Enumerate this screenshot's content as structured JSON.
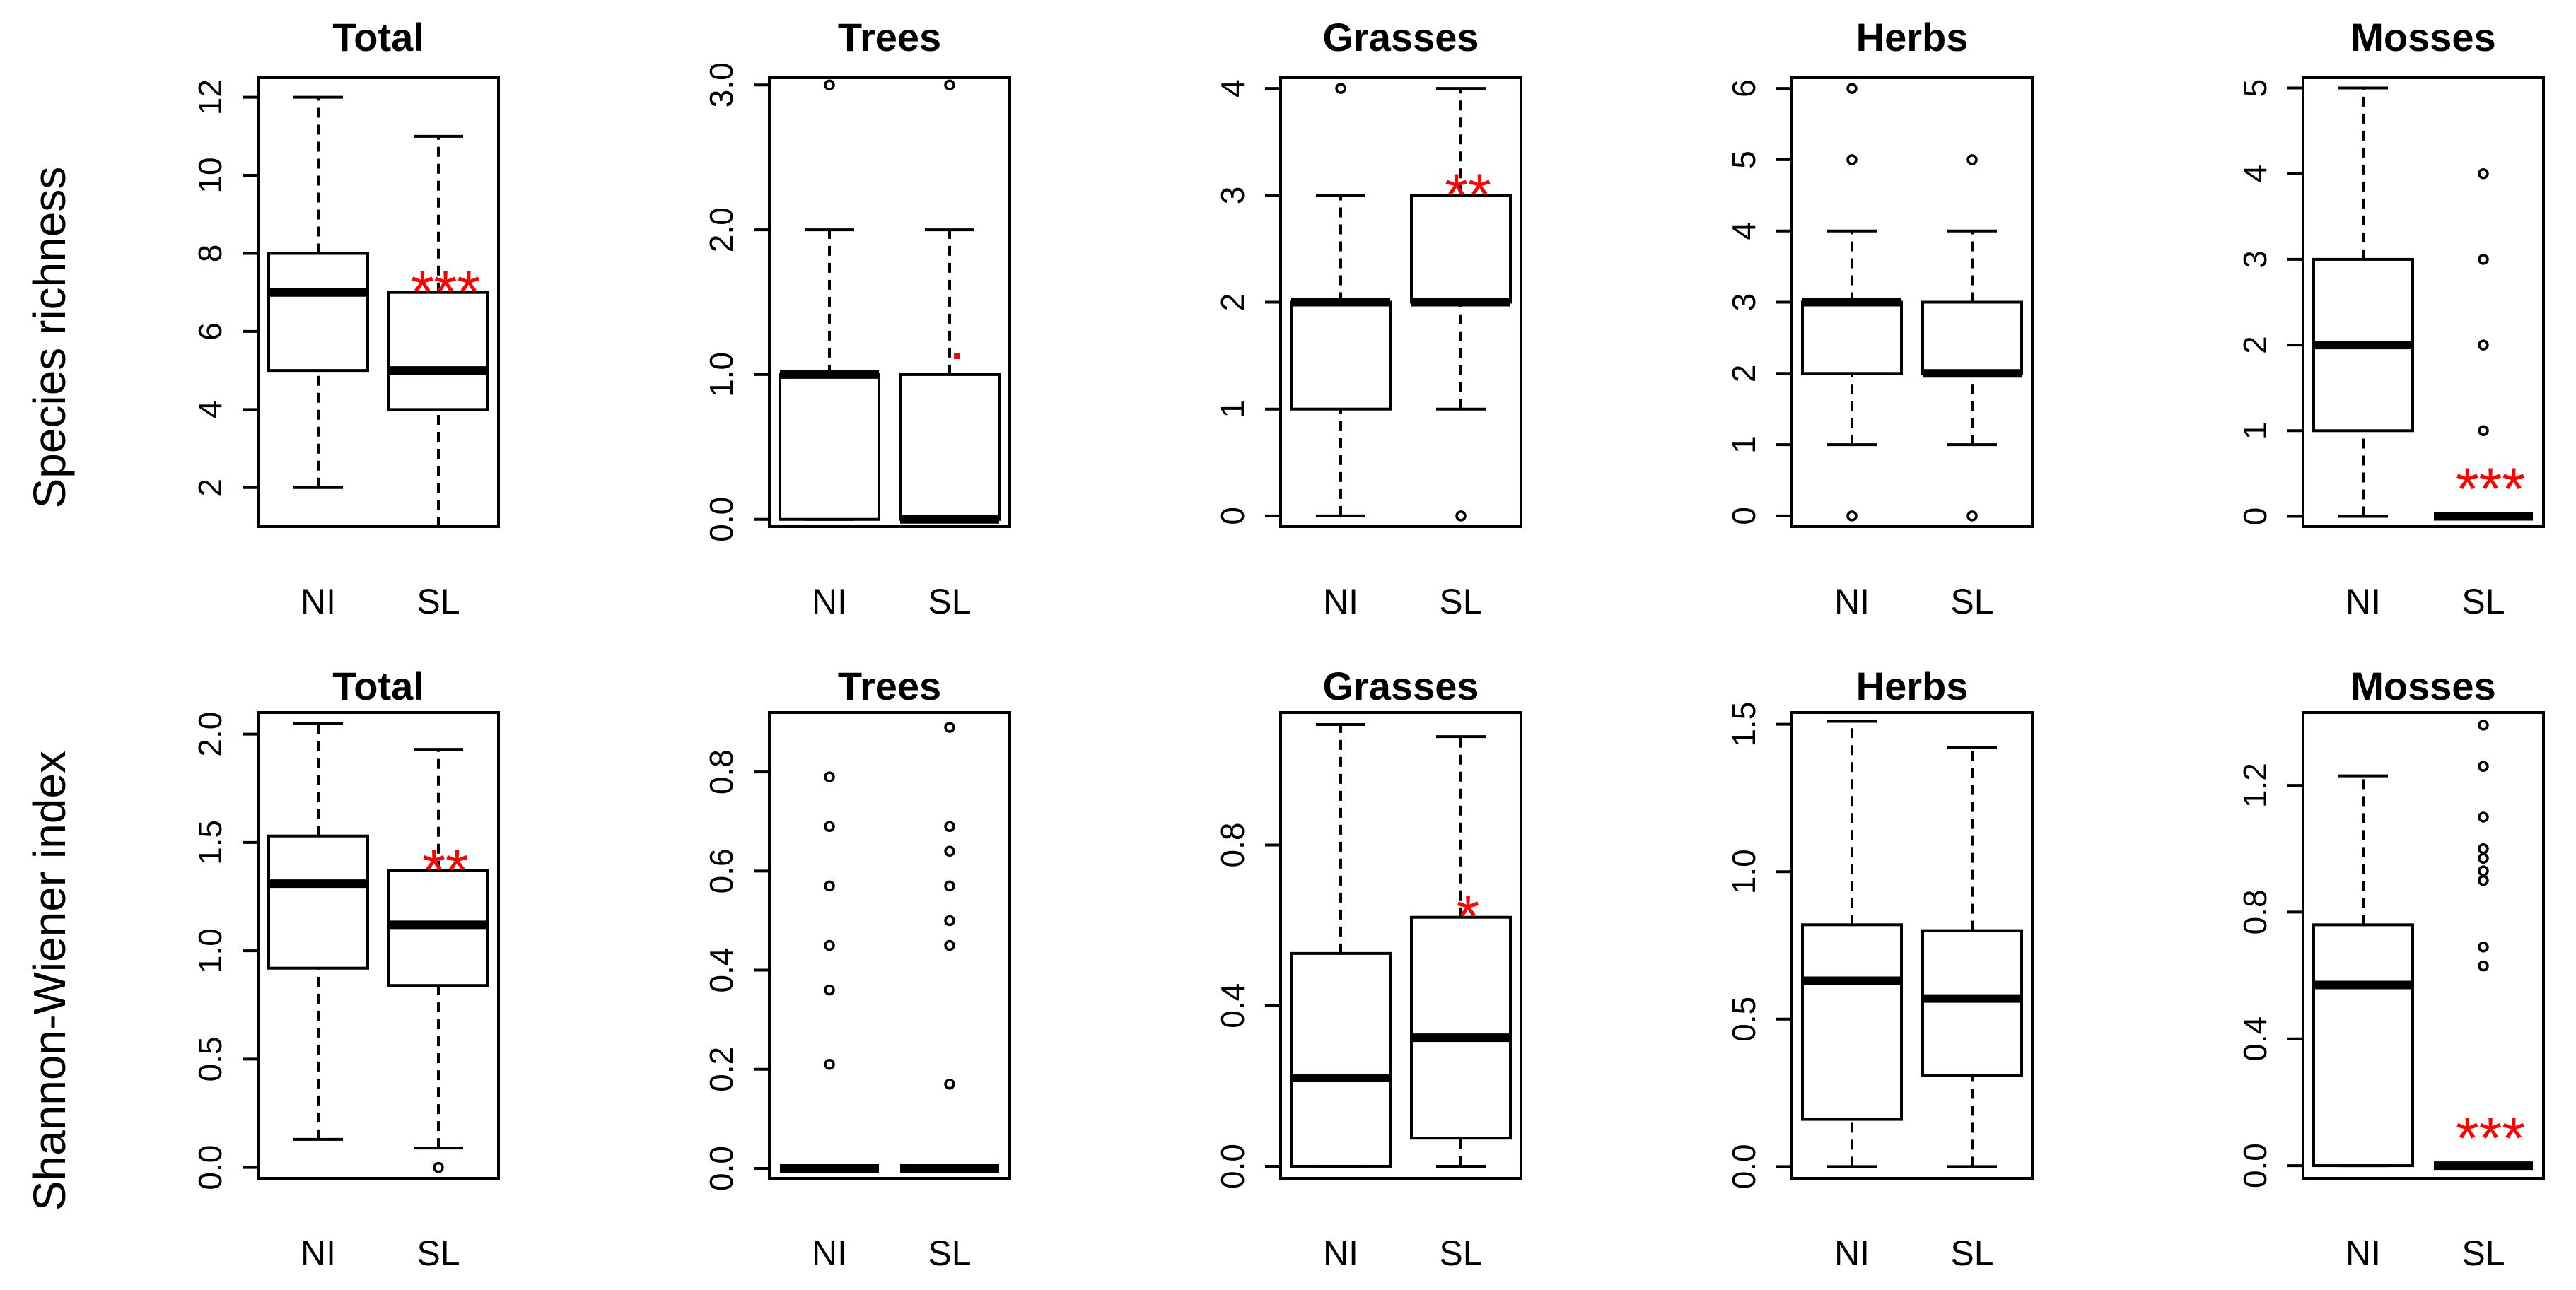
{
  "chart_data": {
    "type": "boxplot",
    "colors": {
      "significance": "#ff0000",
      "ink": "#000000"
    },
    "row_labels": [
      "Species richness",
      "Shannon-Wiener index"
    ],
    "panels": [
      {
        "row": 0,
        "col": 0,
        "title": "Total",
        "ylim": [
          1,
          12.5
        ],
        "ticks": [
          2,
          4,
          6,
          8,
          10,
          12
        ],
        "tick_labels": [
          "2",
          "4",
          "6",
          "8",
          "10",
          "12"
        ],
        "categories": [
          "NI",
          "SL"
        ],
        "boxes": [
          {
            "lw": 2,
            "q1": 5,
            "median": 7,
            "q3": 8,
            "uw": 12,
            "outliers": []
          },
          {
            "lw": 1,
            "q1": 4,
            "median": 5,
            "q3": 7,
            "uw": 11,
            "outliers": []
          }
        ],
        "significance": "***"
      },
      {
        "row": 0,
        "col": 1,
        "title": "Trees",
        "ylim": [
          -0.05,
          3.05
        ],
        "ticks": [
          0,
          1,
          2,
          3
        ],
        "tick_labels": [
          "0.0",
          "1.0",
          "2.0",
          "3.0"
        ],
        "categories": [
          "NI",
          "SL"
        ],
        "boxes": [
          {
            "lw": 0,
            "q1": 0,
            "median": 1,
            "q3": 1,
            "uw": 2,
            "outliers": [
              3
            ]
          },
          {
            "lw": 0,
            "q1": 0,
            "median": 0,
            "q3": 1,
            "uw": 2,
            "outliers": [
              3
            ]
          }
        ],
        "significance": "."
      },
      {
        "row": 0,
        "col": 2,
        "title": "Grasses",
        "ylim": [
          -0.1,
          4.1
        ],
        "ticks": [
          0,
          1,
          2,
          3,
          4
        ],
        "tick_labels": [
          "0",
          "1",
          "2",
          "3",
          "4"
        ],
        "categories": [
          "NI",
          "SL"
        ],
        "boxes": [
          {
            "lw": 0,
            "q1": 1,
            "median": 2,
            "q3": 2,
            "uw": 3,
            "outliers": [
              4
            ]
          },
          {
            "lw": 1,
            "q1": 2,
            "median": 2,
            "q3": 3,
            "uw": 4,
            "outliers": [
              0
            ]
          }
        ],
        "significance": "**"
      },
      {
        "row": 0,
        "col": 3,
        "title": "Herbs",
        "ylim": [
          -0.15,
          6.15
        ],
        "ticks": [
          0,
          1,
          2,
          3,
          4,
          5,
          6
        ],
        "tick_labels": [
          "0",
          "1",
          "2",
          "3",
          "4",
          "5",
          "6"
        ],
        "categories": [
          "NI",
          "SL"
        ],
        "boxes": [
          {
            "lw": 1,
            "q1": 2,
            "median": 3,
            "q3": 3,
            "uw": 4,
            "outliers": [
              0,
              5,
              6
            ]
          },
          {
            "lw": 1,
            "q1": 2,
            "median": 2,
            "q3": 3,
            "uw": 4,
            "outliers": [
              0,
              5
            ]
          }
        ],
        "significance": ""
      },
      {
        "row": 0,
        "col": 4,
        "title": "Mosses",
        "ylim": [
          -0.12,
          5.12
        ],
        "ticks": [
          0,
          1,
          2,
          3,
          4,
          5
        ],
        "tick_labels": [
          "0",
          "1",
          "2",
          "3",
          "4",
          "5"
        ],
        "categories": [
          "NI",
          "SL"
        ],
        "boxes": [
          {
            "lw": 0,
            "q1": 1,
            "median": 2,
            "q3": 3,
            "uw": 5,
            "outliers": []
          },
          {
            "lw": 0,
            "q1": 0,
            "median": 0,
            "q3": 0,
            "uw": 0,
            "outliers": [
              1,
              2,
              3,
              4
            ]
          }
        ],
        "significance": "***"
      },
      {
        "row": 1,
        "col": 0,
        "title": "Total",
        "ylim": [
          -0.05,
          2.1
        ],
        "ticks": [
          0,
          0.5,
          1,
          1.5,
          2
        ],
        "tick_labels": [
          "0.0",
          "0.5",
          "1.0",
          "1.5",
          "2.0"
        ],
        "categories": [
          "NI",
          "SL"
        ],
        "boxes": [
          {
            "lw": 0.13,
            "q1": 0.92,
            "median": 1.31,
            "q3": 1.53,
            "uw": 2.05,
            "outliers": []
          },
          {
            "lw": 0.09,
            "q1": 0.84,
            "median": 1.12,
            "q3": 1.37,
            "uw": 1.93,
            "outliers": [
              0
            ]
          }
        ],
        "significance": "**"
      },
      {
        "row": 1,
        "col": 1,
        "title": "Trees",
        "ylim": [
          -0.02,
          0.92
        ],
        "ticks": [
          0,
          0.2,
          0.4,
          0.6,
          0.8
        ],
        "tick_labels": [
          "0.0",
          "0.2",
          "0.4",
          "0.6",
          "0.8"
        ],
        "categories": [
          "NI",
          "SL"
        ],
        "boxes": [
          {
            "lw": 0,
            "q1": 0,
            "median": 0,
            "q3": 0,
            "uw": 0,
            "outliers": [
              0.21,
              0.36,
              0.45,
              0.57,
              0.69,
              0.79
            ]
          },
          {
            "lw": 0,
            "q1": 0,
            "median": 0,
            "q3": 0,
            "uw": 0,
            "outliers": [
              0.17,
              0.45,
              0.5,
              0.57,
              0.64,
              0.69,
              0.89
            ]
          }
        ],
        "significance": ""
      },
      {
        "row": 1,
        "col": 2,
        "title": "Grasses",
        "ylim": [
          -0.03,
          1.13
        ],
        "ticks": [
          0,
          0.4,
          0.8
        ],
        "tick_labels": [
          "0.0",
          "0.4",
          "0.8"
        ],
        "categories": [
          "NI",
          "SL"
        ],
        "boxes": [
          {
            "lw": 0,
            "q1": 0,
            "median": 0.22,
            "q3": 0.53,
            "uw": 1.1,
            "outliers": []
          },
          {
            "lw": 0,
            "q1": 0.07,
            "median": 0.32,
            "q3": 0.62,
            "uw": 1.07,
            "outliers": []
          }
        ],
        "significance": "*"
      },
      {
        "row": 1,
        "col": 3,
        "title": "Herbs",
        "ylim": [
          -0.04,
          1.54
        ],
        "ticks": [
          0,
          0.5,
          1,
          1.5
        ],
        "tick_labels": [
          "0.0",
          "0.5",
          "1.0",
          "1.5"
        ],
        "categories": [
          "NI",
          "SL"
        ],
        "boxes": [
          {
            "lw": 0,
            "q1": 0.16,
            "median": 0.63,
            "q3": 0.82,
            "uw": 1.51,
            "outliers": []
          },
          {
            "lw": 0,
            "q1": 0.31,
            "median": 0.57,
            "q3": 0.8,
            "uw": 1.42,
            "outliers": []
          }
        ],
        "significance": ""
      },
      {
        "row": 1,
        "col": 4,
        "title": "Mosses",
        "ylim": [
          -0.04,
          1.43
        ],
        "ticks": [
          0,
          0.4,
          0.8,
          1.2
        ],
        "tick_labels": [
          "0.0",
          "0.4",
          "0.8",
          "1.2"
        ],
        "categories": [
          "NI",
          "SL"
        ],
        "boxes": [
          {
            "lw": 0,
            "q1": 0,
            "median": 0.57,
            "q3": 0.76,
            "uw": 1.23,
            "outliers": []
          },
          {
            "lw": 0,
            "q1": 0,
            "median": 0,
            "q3": 0,
            "uw": 0,
            "outliers": [
              0.63,
              0.69,
              0.9,
              0.93,
              0.97,
              1.0,
              1.1,
              1.26,
              1.39
            ]
          }
        ],
        "significance": "***"
      }
    ]
  }
}
